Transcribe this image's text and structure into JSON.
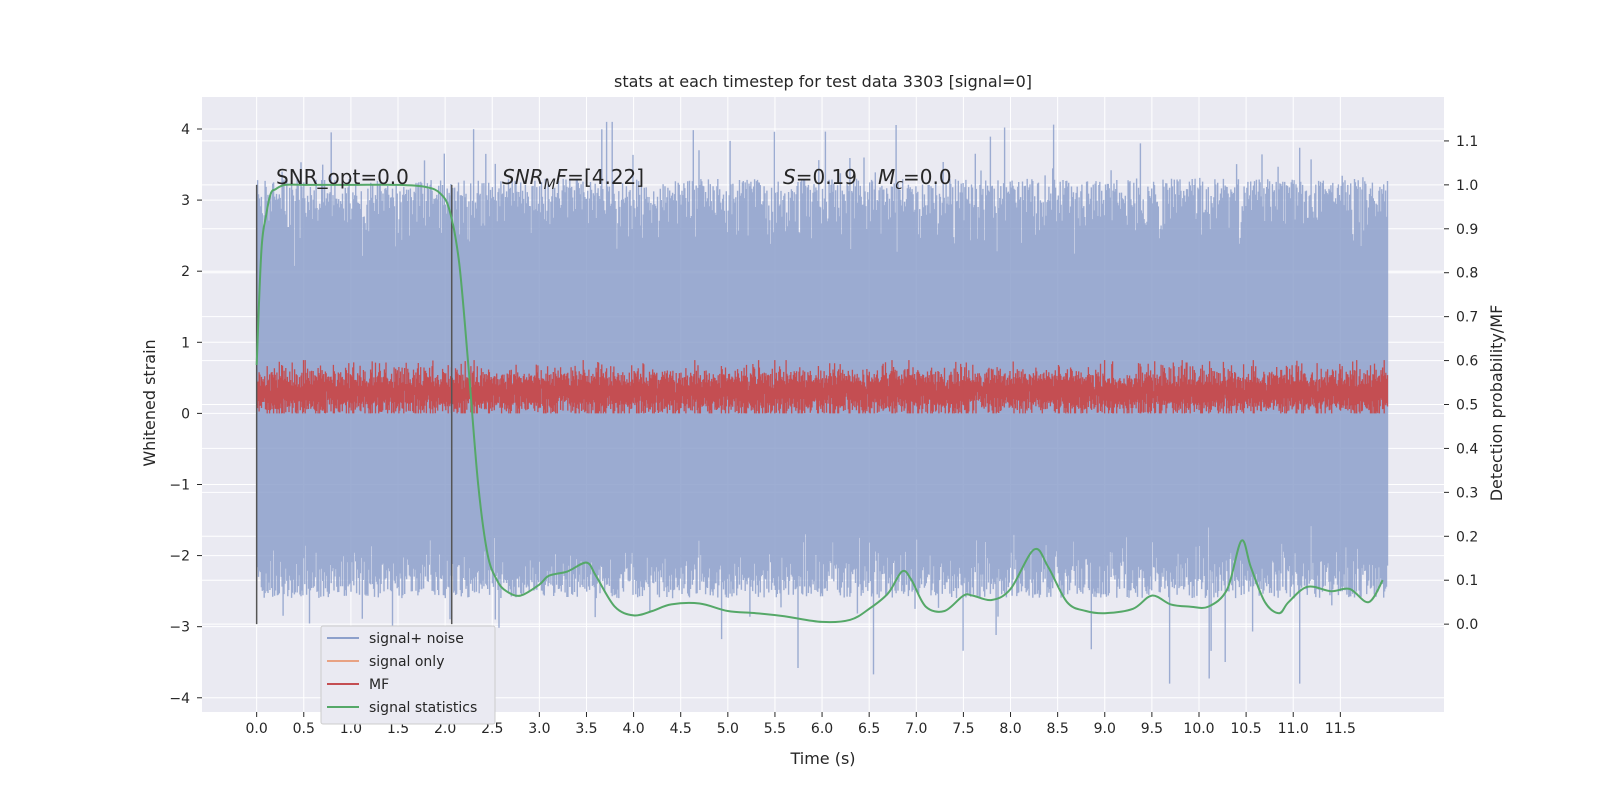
{
  "chart_data": {
    "type": "line",
    "title": "stats at each timestep for test data 3303 [signal=0]",
    "xlabel": "Time (s)",
    "ylabel": "Whitened strain",
    "ylabel_right": "Detection probability/MF",
    "xlim": [
      -0.58,
      12.6
    ],
    "ylim": [
      -4.2,
      4.45
    ],
    "ylim_right": [
      -0.2,
      1.2
    ],
    "x_ticks": [
      "0.0",
      "0.5",
      "1.0",
      "1.5",
      "2.0",
      "2.5",
      "3.0",
      "3.5",
      "4.0",
      "4.5",
      "5.0",
      "5.5",
      "6.0",
      "6.5",
      "7.0",
      "7.5",
      "8.0",
      "8.5",
      "9.0",
      "9.5",
      "10.0",
      "10.5",
      "11.0",
      "11.5"
    ],
    "y_ticks": [
      "4",
      "3",
      "2",
      "1",
      "0",
      "−1",
      "−2",
      "−3",
      "−4"
    ],
    "y_ticks_right": [
      "1.1",
      "1.0",
      "0.9",
      "0.8",
      "0.7",
      "0.6",
      "0.5",
      "0.4",
      "0.3",
      "0.2",
      "0.1",
      "0.0"
    ],
    "grid": true,
    "legend_position": "bottom-left",
    "annotations": {
      "snr_opt": "SNR_opt=0.0",
      "snr_mf": "[4.22]",
      "s_value": "0.19",
      "mc_value": "0.0"
    },
    "window_markers_x": [
      0.0,
      2.07
    ],
    "series": [
      {
        "name": "signal+ noise",
        "color": "#8da0cb",
        "axis": "left",
        "x_range": [
          0.0,
          12.0
        ],
        "approx_envelope": [
          -3.8,
          4.1
        ],
        "approx_band": [
          -2.6,
          3.3
        ]
      },
      {
        "name": "signal only",
        "color": "#e8a283",
        "axis": "left",
        "values": []
      },
      {
        "name": "MF",
        "color": "#c44e52",
        "axis": "left",
        "x_range": [
          0.0,
          12.0
        ],
        "approx_band": [
          0.0,
          0.75
        ]
      },
      {
        "name": "signal statistics",
        "color": "#55a868",
        "axis": "right",
        "x": [
          0.0,
          0.05,
          0.1,
          0.15,
          0.2,
          0.3,
          0.5,
          1.0,
          1.5,
          1.8,
          1.95,
          2.05,
          2.15,
          2.25,
          2.35,
          2.45,
          2.55,
          2.65,
          2.8,
          3.0,
          3.1,
          3.3,
          3.5,
          3.6,
          3.8,
          4.0,
          4.2,
          4.4,
          4.7,
          5.0,
          5.3,
          5.6,
          6.0,
          6.3,
          6.5,
          6.7,
          6.85,
          6.95,
          7.1,
          7.3,
          7.5,
          7.6,
          7.8,
          8.0,
          8.25,
          8.4,
          8.6,
          8.8,
          9.0,
          9.3,
          9.5,
          9.7,
          9.9,
          10.1,
          10.3,
          10.45,
          10.55,
          10.7,
          10.85,
          10.95,
          11.15,
          11.4,
          11.6,
          11.8,
          11.95
        ],
        "values": [
          0.59,
          0.85,
          0.93,
          0.98,
          0.99,
          1.0,
          1.0,
          1.0,
          1.0,
          0.995,
          0.98,
          0.94,
          0.82,
          0.58,
          0.32,
          0.16,
          0.1,
          0.075,
          0.065,
          0.09,
          0.11,
          0.12,
          0.14,
          0.11,
          0.04,
          0.02,
          0.03,
          0.045,
          0.047,
          0.03,
          0.025,
          0.018,
          0.005,
          0.01,
          0.035,
          0.07,
          0.12,
          0.1,
          0.04,
          0.03,
          0.065,
          0.065,
          0.055,
          0.08,
          0.17,
          0.13,
          0.05,
          0.03,
          0.025,
          0.035,
          0.065,
          0.045,
          0.04,
          0.04,
          0.08,
          0.19,
          0.13,
          0.05,
          0.025,
          0.05,
          0.085,
          0.075,
          0.08,
          0.05,
          0.1
        ]
      }
    ]
  }
}
